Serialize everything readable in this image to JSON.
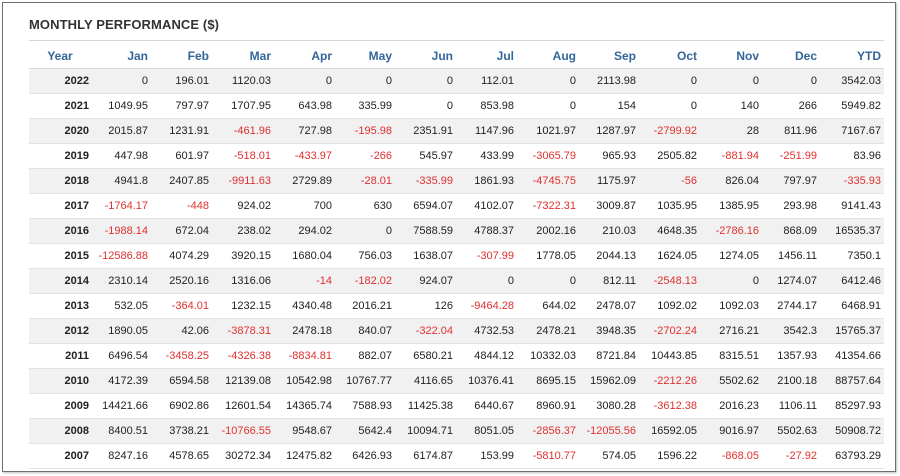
{
  "title": "MONTHLY PERFORMANCE ($)",
  "colors": {
    "header_text": "#336699",
    "negative": "#e03030",
    "stripe": "#f1f1f1"
  },
  "columns": [
    "Year",
    "Jan",
    "Feb",
    "Mar",
    "Apr",
    "May",
    "Jun",
    "Jul",
    "Aug",
    "Sep",
    "Oct",
    "Nov",
    "Dec",
    "YTD"
  ],
  "rows": [
    [
      "2022",
      "0",
      "196.01",
      "1120.03",
      "0",
      "0",
      "0",
      "112.01",
      "0",
      "2113.98",
      "0",
      "0",
      "0",
      "3542.03"
    ],
    [
      "2021",
      "1049.95",
      "797.97",
      "1707.95",
      "643.98",
      "335.99",
      "0",
      "853.98",
      "0",
      "154",
      "0",
      "140",
      "266",
      "5949.82"
    ],
    [
      "2020",
      "2015.87",
      "1231.91",
      "-461.96",
      "727.98",
      "-195.98",
      "2351.91",
      "1147.96",
      "1021.97",
      "1287.97",
      "-2799.92",
      "28",
      "811.96",
      "7167.67"
    ],
    [
      "2019",
      "447.98",
      "601.97",
      "-518.01",
      "-433.97",
      "-266",
      "545.97",
      "433.99",
      "-3065.79",
      "965.93",
      "2505.82",
      "-881.94",
      "-251.99",
      "83.96"
    ],
    [
      "2018",
      "4941.8",
      "2407.85",
      "-9911.63",
      "2729.89",
      "-28.01",
      "-335.99",
      "1861.93",
      "-4745.75",
      "1175.97",
      "-56",
      "826.04",
      "797.97",
      "-335.93"
    ],
    [
      "2017",
      "-1764.17",
      "-448",
      "924.02",
      "700",
      "630",
      "6594.07",
      "4102.07",
      "-7322.31",
      "3009.87",
      "1035.95",
      "1385.95",
      "293.98",
      "9141.43"
    ],
    [
      "2016",
      "-1988.14",
      "672.04",
      "238.02",
      "294.02",
      "0",
      "7588.59",
      "4788.37",
      "2002.16",
      "210.03",
      "4648.35",
      "-2786.16",
      "868.09",
      "16535.37"
    ],
    [
      "2015",
      "-12586.88",
      "4074.29",
      "3920.15",
      "1680.04",
      "756.03",
      "1638.07",
      "-307.99",
      "1778.05",
      "2044.13",
      "1624.05",
      "1274.05",
      "1456.11",
      "7350.1"
    ],
    [
      "2014",
      "2310.14",
      "2520.16",
      "1316.06",
      "-14",
      "-182.02",
      "924.07",
      "0",
      "0",
      "812.11",
      "-2548.13",
      "0",
      "1274.07",
      "6412.46"
    ],
    [
      "2013",
      "532.05",
      "-364.01",
      "1232.15",
      "4340.48",
      "2016.21",
      "126",
      "-9464.28",
      "644.02",
      "2478.07",
      "1092.02",
      "1092.03",
      "2744.17",
      "6468.91"
    ],
    [
      "2012",
      "1890.05",
      "42.06",
      "-3878.31",
      "2478.18",
      "840.07",
      "-322.04",
      "4732.53",
      "2478.21",
      "3948.35",
      "-2702.24",
      "2716.21",
      "3542.3",
      "15765.37"
    ],
    [
      "2011",
      "6496.54",
      "-3458.25",
      "-4326.38",
      "-8834.81",
      "882.07",
      "6580.21",
      "4844.12",
      "10332.03",
      "8721.84",
      "10443.85",
      "8315.51",
      "1357.93",
      "41354.66"
    ],
    [
      "2010",
      "4172.39",
      "6594.58",
      "12139.08",
      "10542.98",
      "10767.77",
      "4116.65",
      "10376.41",
      "8695.15",
      "15962.09",
      "-2212.26",
      "5502.62",
      "2100.18",
      "88757.64"
    ],
    [
      "2009",
      "14421.66",
      "6902.86",
      "12601.54",
      "14365.74",
      "7588.93",
      "11425.38",
      "6440.67",
      "8960.91",
      "3080.28",
      "-3612.38",
      "2016.23",
      "1106.11",
      "85297.93"
    ],
    [
      "2008",
      "8400.51",
      "3738.21",
      "-10766.55",
      "9548.67",
      "5642.4",
      "10094.71",
      "8051.05",
      "-2856.37",
      "-12055.56",
      "16592.05",
      "9016.97",
      "5502.63",
      "50908.72"
    ],
    [
      "2007",
      "8247.16",
      "4578.65",
      "30272.34",
      "12475.82",
      "6426.93",
      "6174.87",
      "153.99",
      "-5810.77",
      "574.05",
      "1596.22",
      "-868.05",
      "-27.92",
      "63793.29"
    ]
  ]
}
